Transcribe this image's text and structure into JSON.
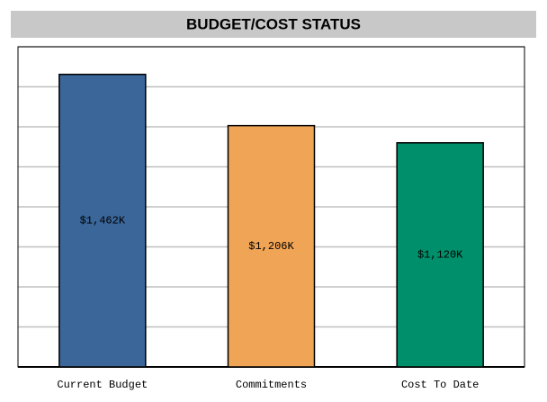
{
  "chart_data": {
    "type": "bar",
    "title": "BUDGET/COST STATUS",
    "categories": [
      "Current Budget",
      "Commitments",
      "Cost To Date"
    ],
    "values": [
      1462,
      1206,
      1120
    ],
    "value_labels": [
      "$1,462K",
      "$1,206K",
      "$1,120K"
    ],
    "colors": [
      "#3a6699",
      "#f0a455",
      "#008f6b"
    ],
    "ylim": [
      0,
      1600
    ],
    "yticks": [
      0,
      200,
      400,
      600,
      800,
      1000,
      1200,
      1400,
      1600
    ],
    "grid": true
  }
}
